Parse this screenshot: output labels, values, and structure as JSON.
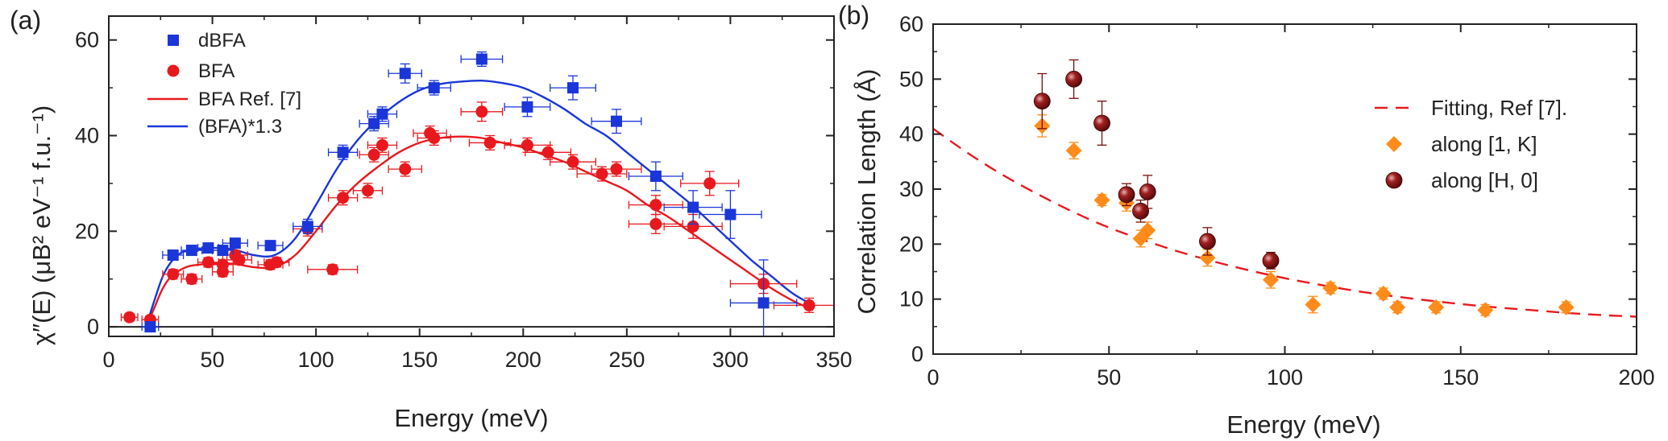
{
  "chart_data": [
    {
      "type": "scatter",
      "panel_label": "(a)",
      "xlabel": "Energy (meV)",
      "ylabel": "χ″(E) (μB² eV⁻¹ f.u.⁻¹)",
      "xlim": [
        0,
        350
      ],
      "ylim": [
        -2,
        65
      ],
      "xticks": [
        0,
        50,
        100,
        150,
        200,
        250,
        300,
        350
      ],
      "yticks": [
        0,
        20,
        40,
        60
      ],
      "legend_position": "top-left",
      "legend": [
        "dBFA",
        "BFA",
        "BFA Ref. [7]",
        "(BFA)*1.3"
      ],
      "series": [
        {
          "name": "dBFA",
          "kind": "points",
          "marker": "square",
          "color": "#1a36d8",
          "x": [
            20,
            31,
            40,
            48,
            55,
            61,
            78,
            96,
            113,
            128,
            132,
            143,
            157,
            180,
            202,
            224,
            245,
            264,
            282,
            300,
            316
          ],
          "y": [
            0,
            15,
            16,
            16.5,
            16,
            17.5,
            17,
            21,
            36.5,
            42.5,
            44.5,
            53,
            50,
            56,
            46,
            50,
            43,
            31.5,
            25,
            23.5,
            5
          ],
          "xerr": [
            4,
            5,
            5,
            5,
            5,
            6,
            6,
            7,
            7,
            7,
            7,
            8,
            8,
            10,
            11,
            11,
            12,
            13,
            14,
            15,
            16
          ],
          "yerr": [
            0,
            0.8,
            0.8,
            0.8,
            1,
            1,
            1,
            1.5,
            1.5,
            1.5,
            1.5,
            2,
            1.5,
            1.5,
            2,
            2.5,
            2.5,
            3,
            3.5,
            5,
            9
          ]
        },
        {
          "name": "BFA",
          "kind": "points",
          "marker": "circle",
          "color": "#e8191e",
          "x": [
            10,
            20,
            31,
            40,
            48,
            55,
            55,
            61,
            63,
            78,
            81,
            96,
            108,
            113,
            125,
            128,
            132,
            143,
            155,
            157,
            180,
            184,
            202,
            212,
            224,
            238,
            245,
            264,
            264,
            282,
            290,
            316,
            338
          ],
          "y": [
            2,
            1.5,
            11,
            10,
            13.5,
            11.5,
            13,
            15,
            14,
            13,
            13.5,
            20.5,
            12,
            27,
            28.5,
            36,
            38,
            33,
            40.5,
            39.5,
            45,
            38.5,
            38,
            36.5,
            34.5,
            32,
            33,
            25.5,
            21.5,
            21,
            30,
            9,
            4.5
          ],
          "xerr": [
            4,
            4,
            5,
            5,
            5,
            5,
            5,
            6,
            6,
            6,
            6,
            7,
            12,
            7,
            7,
            7,
            7,
            8,
            8,
            8,
            10,
            10,
            11,
            11,
            11,
            12,
            12,
            13,
            13,
            14,
            14,
            16,
            17
          ],
          "yerr": [
            0.8,
            0.8,
            1,
            1,
            1,
            1,
            1,
            1,
            1,
            1,
            1,
            1.5,
            1,
            1.5,
            1.5,
            1.5,
            1.5,
            1.5,
            1.5,
            1.5,
            2,
            1.5,
            1.5,
            1.5,
            1.5,
            1.5,
            1.5,
            2,
            2,
            2.5,
            2.5,
            2,
            1.5
          ]
        },
        {
          "name": "BFA Ref. [7]",
          "kind": "curve",
          "color": "#e8191e",
          "x": [
            18,
            22,
            26,
            30,
            35,
            40,
            50,
            60,
            70,
            80,
            90,
            100,
            110,
            120,
            130,
            140,
            150,
            160,
            170,
            180,
            190,
            200,
            210,
            220,
            230,
            240,
            250,
            260,
            270,
            280,
            290,
            300,
            310,
            320,
            330,
            340
          ],
          "y": [
            0,
            4,
            8,
            10.5,
            12,
            12.8,
            13.2,
            13.2,
            12.5,
            12.5,
            15,
            20,
            25.5,
            30,
            33.5,
            36.5,
            38.5,
            39.5,
            39.8,
            39.5,
            38.5,
            37.5,
            36,
            34.5,
            32.5,
            30.5,
            28.5,
            25.5,
            23,
            20,
            17,
            14,
            11,
            8,
            5.5,
            3.5
          ]
        },
        {
          "name": "(BFA)*1.3",
          "kind": "curve",
          "color": "#1a36d8",
          "x": [
            18,
            22,
            26,
            30,
            35,
            40,
            50,
            60,
            70,
            80,
            90,
            100,
            110,
            120,
            130,
            140,
            150,
            160,
            170,
            180,
            190,
            200,
            210,
            220,
            230,
            240,
            250,
            260,
            270,
            280,
            290,
            300,
            310,
            320,
            330,
            340
          ],
          "y": [
            0,
            5.5,
            10.5,
            13.5,
            15.5,
            16,
            16.5,
            16.2,
            15,
            15,
            18.5,
            25.5,
            33,
            39,
            43.5,
            47,
            49.5,
            50.8,
            51.3,
            51.5,
            51,
            50,
            48,
            45.5,
            42.5,
            40,
            36.5,
            33,
            29.5,
            26,
            22,
            18,
            14,
            10.5,
            7,
            4.5
          ]
        }
      ]
    },
    {
      "type": "scatter",
      "panel_label": "(b)",
      "xlabel": "Energy (meV)",
      "ylabel": "Correlation Length (Å)",
      "xlim": [
        0,
        200
      ],
      "ylim": [
        0,
        60
      ],
      "xticks": [
        0,
        50,
        100,
        150,
        200
      ],
      "yticks": [
        0,
        10,
        20,
        30,
        40,
        50,
        60
      ],
      "legend_position": "top-right",
      "legend": [
        "Fitting, Ref [7].",
        "along [1, K]",
        "along [H, 0]"
      ],
      "series": [
        {
          "name": "Fitting, Ref [7].",
          "kind": "dashed-curve",
          "color": "#e8191e",
          "x": [
            0,
            10,
            20,
            30,
            40,
            50,
            60,
            70,
            80,
            90,
            100,
            110,
            120,
            130,
            140,
            150,
            160,
            170,
            180,
            190,
            200
          ],
          "y": [
            41,
            36.5,
            32.5,
            29,
            25.8,
            23,
            20.7,
            18.6,
            16.8,
            15.2,
            13.8,
            12.6,
            11.5,
            10.6,
            9.8,
            9.1,
            8.5,
            8,
            7.5,
            7.1,
            6.8
          ]
        },
        {
          "name": "along [1, K]",
          "kind": "points",
          "marker": "diamond",
          "color": "#ff8c1a",
          "x": [
            31,
            40,
            48,
            55,
            59,
            61,
            78,
            96,
            108,
            113,
            128,
            132,
            143,
            157,
            180
          ],
          "y": [
            41.5,
            37,
            28,
            27.5,
            21,
            22.5,
            17.5,
            13.5,
            9,
            12,
            11,
            8.5,
            8.5,
            8,
            8.5
          ],
          "yerr": [
            2,
            1.5,
            1,
            1.5,
            1.5,
            1.5,
            1.5,
            1.5,
            1.5,
            1,
            1,
            1,
            1,
            1,
            1
          ]
        },
        {
          "name": "along [H, 0]",
          "kind": "points",
          "marker": "sphere",
          "color": "#7a0d0d",
          "x": [
            31,
            40,
            48,
            55,
            59,
            61,
            78,
            96
          ],
          "y": [
            46,
            50,
            42,
            29,
            26,
            29.5,
            20.5,
            17
          ],
          "yerr": [
            5,
            3.5,
            4,
            2,
            2,
            3,
            2.5,
            1.5
          ]
        }
      ]
    }
  ]
}
